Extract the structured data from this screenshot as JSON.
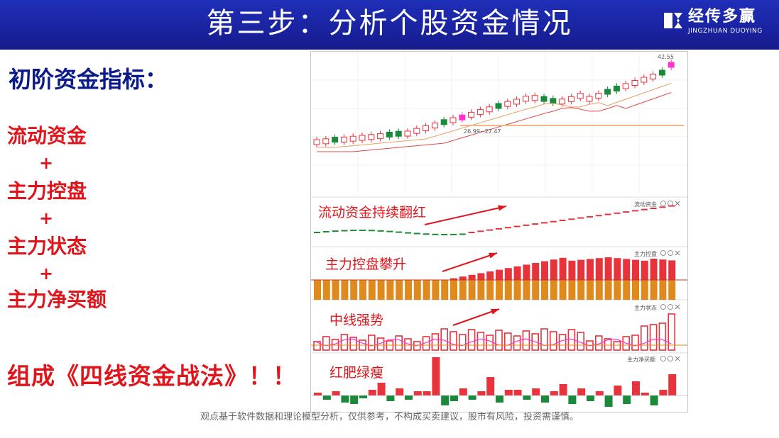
{
  "header": {
    "title": "第三步：分析个股资金情况",
    "logo_cn": "经传多赢",
    "logo_en": "JINGZHUAN DUOYING"
  },
  "left": {
    "title": "初阶资金指标：",
    "items": [
      "流动资金",
      "主力控盘",
      "主力状态",
      "主力净买额"
    ],
    "plus": "+",
    "conclusion": "组成《四线资金战法》！！"
  },
  "chart": {
    "price_high_label": "42.55",
    "price_range_label": "26.99~27.47",
    "panels": {
      "liudong": {
        "name": "流动资金",
        "annotation": "流动资金持续翻红"
      },
      "kongpan": {
        "name": "主力控盘",
        "annotation": "主力控盘攀升"
      },
      "zhuangtai": {
        "name": "主力状态",
        "annotation": "中线强势"
      },
      "jingmai": {
        "name": "主力净买额",
        "annotation": "红肥绿瘦"
      }
    },
    "colors": {
      "up": "#e8323c",
      "down": "#1a8a3a",
      "highlight": "#ff33cc",
      "orange": "#e08a1e",
      "ma1": "#e8a060",
      "ma2": "#e04848"
    }
  },
  "footer": {
    "disclaimer": "观点基于软件数据和理论模型分析，仅供参考，不构成买卖建议，股市有风险，投资需谨慎。"
  }
}
